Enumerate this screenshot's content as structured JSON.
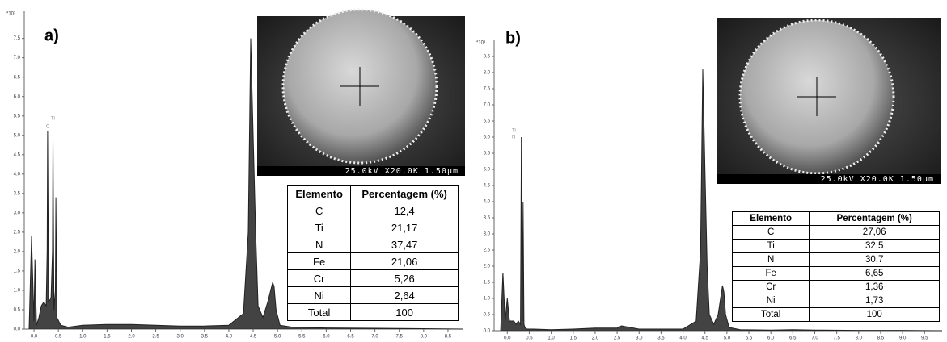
{
  "chart_data": [
    {
      "type": "area",
      "title": "a)",
      "ylabel": "*10³",
      "color": "#222",
      "annotations": [
        "C",
        "Ti"
      ],
      "x": [
        -0.1,
        -0.05,
        0,
        0.02,
        0.05,
        0.1,
        0.15,
        0.2,
        0.25,
        0.27,
        0.28,
        0.3,
        0.35,
        0.38,
        0.39,
        0.41,
        0.44,
        0.45,
        0.47,
        0.55,
        0.7,
        1.0,
        1.5,
        2.0,
        2.5,
        3.0,
        3.5,
        4.0,
        4.3,
        4.4,
        4.45,
        4.5,
        4.55,
        4.6,
        4.7,
        4.8,
        4.9,
        4.93,
        4.97,
        5.05,
        5.3,
        6.0,
        7.0,
        8.0,
        8.8
      ],
      "values": [
        0,
        2.4,
        0.2,
        1.8,
        0.1,
        0.3,
        0.6,
        0.7,
        0.6,
        2.0,
        5.1,
        0.7,
        0.8,
        2.0,
        4.9,
        0.5,
        1.0,
        3.4,
        0.3,
        0.1,
        0.05,
        0.1,
        0.12,
        0.12,
        0.1,
        0.08,
        0.08,
        0.1,
        0.4,
        2.5,
        7.5,
        5.0,
        2.5,
        0.6,
        0.3,
        0.7,
        1.2,
        1.1,
        0.5,
        0.1,
        0.05,
        0.03,
        0.02,
        0.01,
        0
      ],
      "xlim": [
        -0.2,
        8.8
      ],
      "ylim": [
        0,
        8.2
      ],
      "xticks": [
        {
          "value": 0,
          "label": "0.0"
        },
        0.5,
        {
          "value": 1,
          "label": "1.0"
        },
        1.5,
        {
          "value": 2,
          "label": "2.0"
        },
        2.5,
        {
          "value": 3,
          "label": "3.0"
        },
        3.5,
        {
          "value": 4,
          "label": "4.0"
        },
        4.5,
        {
          "value": 5,
          "label": "5.0"
        },
        5.5,
        {
          "value": 6,
          "label": "6.0"
        },
        6.5,
        {
          "value": 7,
          "label": "7.0"
        },
        7.5,
        {
          "value": 8,
          "label": "8.0"
        },
        8.5
      ],
      "yticks": [
        {
          "value": 0,
          "label": "0.0"
        },
        0.5,
        {
          "value": 1,
          "label": "1.0"
        },
        1.5,
        {
          "value": 2,
          "label": "2.0"
        },
        2.5,
        {
          "value": 3,
          "label": "3.0"
        },
        3.5,
        {
          "value": 4,
          "label": "4.0"
        },
        4.5,
        {
          "value": 5,
          "label": "5.0"
        },
        5.5,
        {
          "value": 6,
          "label": "6.0"
        },
        6.5,
        {
          "value": 7,
          "label": "7.0"
        },
        7.5
      ],
      "image_caption": "25.0kV X20.0K 1.50μm",
      "table": {
        "header": [
          "Elemento",
          "Percentagem (%)"
        ],
        "rows": [
          [
            "C",
            "12,4"
          ],
          [
            "Ti",
            "21,17"
          ],
          [
            "N",
            "37,47"
          ],
          [
            "Fe",
            "21,06"
          ],
          [
            "Cr",
            "5,26"
          ],
          [
            "Ni",
            "2,64"
          ],
          [
            "Total",
            "100"
          ]
        ]
      }
    },
    {
      "type": "area",
      "title": "b)",
      "ylabel": "*10³",
      "color": "#222",
      "annotations": [
        "Ti",
        "N"
      ],
      "x": [
        -0.15,
        -0.1,
        -0.05,
        0,
        0.05,
        0.1,
        0.15,
        0.2,
        0.25,
        0.3,
        0.32,
        0.34,
        0.36,
        0.38,
        0.4,
        0.45,
        0.6,
        1.0,
        1.5,
        2.0,
        2.5,
        2.6,
        3.0,
        3.5,
        4.0,
        4.3,
        4.4,
        4.45,
        4.5,
        4.55,
        4.6,
        4.7,
        4.8,
        4.9,
        4.93,
        4.97,
        5.05,
        5.3,
        6.0,
        6.5,
        7.0,
        8.0,
        9.0,
        9.9
      ],
      "values": [
        0,
        1.8,
        0.3,
        1.0,
        0.3,
        0.3,
        0.3,
        0.2,
        0.3,
        0.2,
        6.0,
        0.3,
        4.0,
        0.2,
        0.1,
        0.05,
        0.05,
        0.03,
        0.05,
        0.08,
        0.08,
        0.15,
        0.05,
        0.05,
        0.05,
        0.3,
        2.5,
        8.1,
        5.0,
        2.0,
        0.5,
        0.2,
        0.5,
        1.4,
        1.2,
        0.5,
        0.1,
        0.03,
        0.02,
        0.03,
        0.02,
        0.01,
        0.01,
        0
      ],
      "xlim": [
        -0.3,
        9.9
      ],
      "ylim": [
        0,
        9.0
      ],
      "xticks": [
        {
          "value": 0,
          "label": "0.0"
        },
        0.5,
        {
          "value": 1,
          "label": "1.0"
        },
        1.5,
        {
          "value": 2,
          "label": "2.0"
        },
        2.5,
        {
          "value": 3,
          "label": "3.0"
        },
        3.5,
        {
          "value": 4,
          "label": "4.0"
        },
        4.5,
        {
          "value": 5,
          "label": "5.0"
        },
        5.5,
        {
          "value": 6,
          "label": "6.0"
        },
        6.5,
        {
          "value": 7,
          "label": "7.0"
        },
        7.5,
        {
          "value": 8,
          "label": "8.0"
        },
        8.5,
        {
          "value": 9,
          "label": "9.0"
        },
        9.5
      ],
      "yticks": [
        {
          "value": 0,
          "label": "0.0"
        },
        0.5,
        {
          "value": 1,
          "label": "1.0"
        },
        1.5,
        {
          "value": 2,
          "label": "2.0"
        },
        2.5,
        {
          "value": 3,
          "label": "3.0"
        },
        3.5,
        {
          "value": 4,
          "label": "4.0"
        },
        4.5,
        {
          "value": 5,
          "label": "5.0"
        },
        5.5,
        {
          "value": 6,
          "label": "6.0"
        },
        6.5,
        {
          "value": 7,
          "label": "7.0"
        },
        7.5,
        {
          "value": 8,
          "label": "8.0"
        },
        8.5
      ],
      "image_caption": "25.0kV X20.0K 1.50μm",
      "table": {
        "header": [
          "Elemento",
          "Percentagem (%)"
        ],
        "rows": [
          [
            "C",
            "27,06"
          ],
          [
            "Ti",
            "32,5"
          ],
          [
            "N",
            "30,7"
          ],
          [
            "Fe",
            "6,65"
          ],
          [
            "Cr",
            "1,36"
          ],
          [
            "Ni",
            "1,73"
          ],
          [
            "Total",
            "100"
          ]
        ]
      }
    }
  ]
}
